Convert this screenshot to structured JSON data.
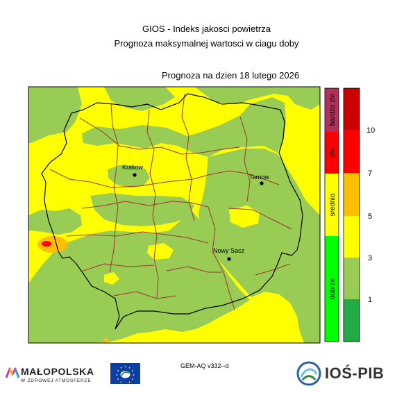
{
  "header": {
    "line1": "GIOS - Indeks jakosci powietrza",
    "line2": "Prognoza maksymalnej wartosci w ciagu doby",
    "forecast_label": "Prognoza na dzien  18 lutego 2026"
  },
  "map": {
    "cities": [
      {
        "name": "Krakow"
      },
      {
        "name": "Tarnow"
      },
      {
        "name": "Nowy Sacz"
      }
    ]
  },
  "legend": {
    "categories": [
      {
        "label": "bardzo zle",
        "color": "#b0325a"
      },
      {
        "label": "zle",
        "color": "#ff0000"
      },
      {
        "label": "srednio",
        "color": "#ffff00"
      },
      {
        "label": "dobrze",
        "color": "#00ff00"
      }
    ],
    "scale": [
      {
        "color": "#cc0000"
      },
      {
        "color": "#ff0000"
      },
      {
        "color": "#ffbf00"
      },
      {
        "color": "#ffff00"
      },
      {
        "color": "#99cc55"
      },
      {
        "color": "#22aa44"
      }
    ],
    "ticks": [
      "10",
      "7",
      "5",
      "3",
      "1"
    ]
  },
  "colors": {
    "yellow": "#ffff00",
    "green": "#99cc55",
    "orange": "#ffbf00",
    "red": "#ff0000",
    "county_border": "#a0332a",
    "region_border": "#000000"
  },
  "footer": {
    "model": "GEM-AQ v332--d",
    "logo_left_name": "MAŁOPOLSKA",
    "logo_left_tagline": "W ZDROWEJ ATMOSFERZE",
    "logo_right_name": "IOŚ-PIB"
  }
}
